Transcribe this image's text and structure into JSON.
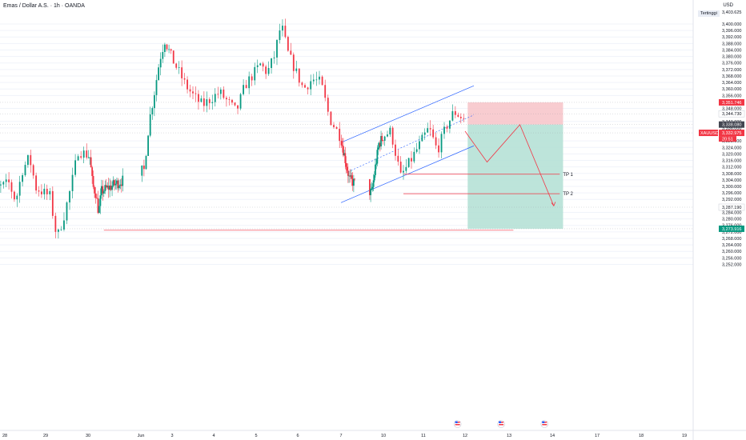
{
  "header": {
    "title": "Emas / Dollar A.S. · 1h · OANDA",
    "currency": "USD",
    "high_badge": "Tertinggi",
    "high_price": "3,403.625"
  },
  "colors": {
    "up": "#089981",
    "down": "#f23645",
    "channel": "#2962ff",
    "target": "#f23645",
    "stop_zone": "#f7c3c8",
    "profit_zone": "#b2dfd4",
    "grid": "#f0f3fa",
    "symbol_tag": "#f23645",
    "dark_tag": "#434651",
    "profit_tag": "#089981"
  },
  "chart_data": {
    "type": "candlestick",
    "symbol": "XAUUSD",
    "timeframe": "1h",
    "y_ticks": [
      "3,400.000",
      "3,396.000",
      "3,392.000",
      "3,388.000",
      "3,384.000",
      "3,380.000",
      "3,376.000",
      "3,372.000",
      "3,368.000",
      "3,364.000",
      "3,360.000",
      "3,356.000",
      "3,348.000",
      "3,340.000",
      "3,336.000",
      "3,328.000",
      "3,324.000",
      "3,320.000",
      "3,316.000",
      "3,312.000",
      "3,308.000",
      "3,304.000",
      "3,300.000",
      "3,296.000",
      "3,292.000",
      "3,284.000",
      "3,280.000",
      "3,276.000",
      "3,272.000",
      "3,268.000",
      "3,264.000",
      "3,260.000",
      "3,256.000",
      "3,252.000"
    ],
    "x_labels": [
      {
        "label": "28",
        "date": "2025-05-28"
      },
      {
        "label": "29",
        "date": "2025-05-29"
      },
      {
        "label": "30",
        "date": "2025-05-30"
      },
      {
        "label": "Jun",
        "date": "2025-06-02"
      },
      {
        "label": "3",
        "date": "2025-06-03"
      },
      {
        "label": "4",
        "date": "2025-06-04"
      },
      {
        "label": "5",
        "date": "2025-06-05"
      },
      {
        "label": "6",
        "date": "2025-06-06"
      },
      {
        "label": "7",
        "date": "2025-06-07"
      },
      {
        "label": "10",
        "date": "2025-06-10"
      },
      {
        "label": "11",
        "date": "2025-06-11"
      },
      {
        "label": "12",
        "date": "2025-06-12"
      },
      {
        "label": "13",
        "date": "2025-06-13"
      },
      {
        "label": "14",
        "date": "2025-06-14"
      },
      {
        "label": "17",
        "date": "2025-06-17"
      },
      {
        "label": "18",
        "date": "2025-06-18"
      },
      {
        "label": "19",
        "date": "2025-06-19"
      }
    ],
    "price_tags": [
      {
        "label": "3,351.746",
        "kind": "stop",
        "price": 3351.746
      },
      {
        "label": "3,344.730",
        "kind": "plain",
        "price": 3344.73
      },
      {
        "label": "3,338.080",
        "kind": "entry",
        "price": 3338.08
      },
      {
        "label": "3,332.975",
        "kind": "current",
        "price": 3332.975,
        "countdown": "20:51",
        "symbol": "XAUUSD"
      },
      {
        "label": "3,287.190",
        "kind": "plain",
        "price": 3287.19
      },
      {
        "label": "3,273.916",
        "kind": "target",
        "price": 3273.916
      }
    ],
    "position": {
      "side": "short",
      "entry": 3338.08,
      "stop": 3351.746,
      "target": 3273.916,
      "start_date": "2025-06-12",
      "end_date": "2025-06-14"
    },
    "targets": [
      {
        "label": "TP 1",
        "price": 3307.5
      },
      {
        "label": "TP 2",
        "price": 3295.5
      }
    ],
    "channel": {
      "upper": [
        {
          "date": "2025-06-07",
          "price": 3327.0
        },
        {
          "date": "2025-06-12",
          "price": 3362.0
        }
      ],
      "mid": [
        {
          "date": "2025-06-07",
          "price": 3309.0
        },
        {
          "date": "2025-06-12",
          "price": 3344.0
        }
      ],
      "lower": [
        {
          "date": "2025-06-07",
          "price": 3290.0
        },
        {
          "date": "2025-06-12",
          "price": 3325.0
        }
      ]
    },
    "support_line": {
      "price": 3273.0,
      "from": "2025-05-30",
      "to": "2025-06-13"
    },
    "projection": [
      {
        "date": "2025-06-12",
        "price": 3334.0
      },
      {
        "date": "2025-06-12",
        "price": 3315.0
      },
      {
        "date": "2025-06-13",
        "price": 3338.0
      },
      {
        "date": "2025-06-14",
        "price": 3288.0
      }
    ],
    "events": [
      "2025-06-12",
      "2025-06-13",
      "2025-06-14"
    ],
    "price_path": [
      {
        "date": "2025-05-27",
        "price": 3295
      },
      {
        "date": "2025-05-28",
        "price": 3302
      },
      {
        "date": "2025-05-28",
        "price": 3291
      },
      {
        "date": "2025-05-28",
        "price": 3310
      },
      {
        "date": "2025-05-28",
        "price": 3318
      },
      {
        "date": "2025-05-28",
        "price": 3299
      },
      {
        "date": "2025-05-29",
        "price": 3294
      },
      {
        "date": "2025-05-29",
        "price": 3268
      },
      {
        "date": "2025-05-29",
        "price": 3282
      },
      {
        "date": "2025-05-29",
        "price": 3300
      },
      {
        "date": "2025-05-29",
        "price": 3322
      },
      {
        "date": "2025-05-30",
        "price": 3318
      },
      {
        "date": "2025-05-30",
        "price": 3300
      },
      {
        "date": "2025-05-30",
        "price": 3296
      },
      {
        "date": "2025-05-30",
        "price": 3284
      },
      {
        "date": "2025-05-30",
        "price": 3297
      },
      {
        "date": "2025-06-02",
        "price": 3310
      },
      {
        "date": "2025-06-02",
        "price": 3340
      },
      {
        "date": "2025-06-02",
        "price": 3358
      },
      {
        "date": "2025-06-02",
        "price": 3378
      },
      {
        "date": "2025-06-02",
        "price": 3390
      },
      {
        "date": "2025-06-03",
        "price": 3372
      },
      {
        "date": "2025-06-03",
        "price": 3362
      },
      {
        "date": "2025-06-03",
        "price": 3355
      },
      {
        "date": "2025-06-03",
        "price": 3350
      },
      {
        "date": "2025-06-04",
        "price": 3358
      },
      {
        "date": "2025-06-04",
        "price": 3352
      },
      {
        "date": "2025-06-04",
        "price": 3346
      },
      {
        "date": "2025-06-04",
        "price": 3362
      },
      {
        "date": "2025-06-05",
        "price": 3375
      },
      {
        "date": "2025-06-05",
        "price": 3370
      },
      {
        "date": "2025-06-05",
        "price": 3380
      },
      {
        "date": "2025-06-05",
        "price": 3400
      },
      {
        "date": "2025-06-05",
        "price": 3382
      },
      {
        "date": "2025-06-06",
        "price": 3360
      },
      {
        "date": "2025-06-06",
        "price": 3366
      },
      {
        "date": "2025-06-06",
        "price": 3364
      },
      {
        "date": "2025-06-06",
        "price": 3342
      },
      {
        "date": "2025-06-07",
        "price": 3318
      },
      {
        "date": "2025-06-07",
        "price": 3304
      },
      {
        "date": "2025-06-09",
        "price": 3296
      },
      {
        "date": "2025-06-09",
        "price": 3312
      },
      {
        "date": "2025-06-09",
        "price": 3326
      },
      {
        "date": "2025-06-10",
        "price": 3334
      },
      {
        "date": "2025-06-10",
        "price": 3306
      },
      {
        "date": "2025-06-10",
        "price": 3316
      },
      {
        "date": "2025-06-11",
        "price": 3336
      },
      {
        "date": "2025-06-11",
        "price": 3322
      },
      {
        "date": "2025-06-11",
        "price": 3336
      },
      {
        "date": "2025-06-11",
        "price": 3346
      },
      {
        "date": "2025-06-12",
        "price": 3333
      }
    ]
  }
}
